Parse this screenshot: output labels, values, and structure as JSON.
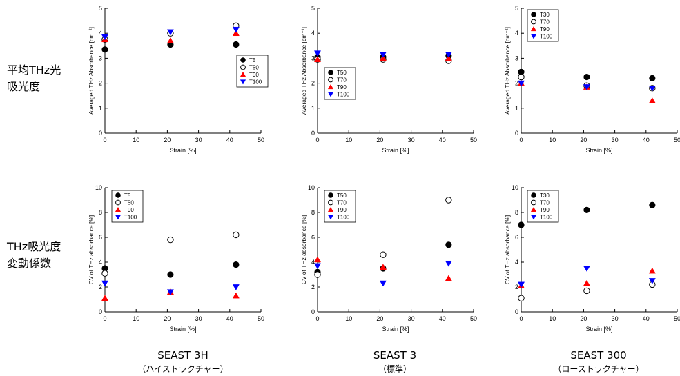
{
  "row_labels": [
    {
      "line1": "平均THz光",
      "line2": "吸光度"
    },
    {
      "line1": "THz吸光度",
      "line2": "変動係数"
    }
  ],
  "column_labels": [
    {
      "title": "SEAST 3H",
      "subtitle": "（ハイストラクチャー）"
    },
    {
      "title": "SEAST 3",
      "subtitle": "（標準）"
    },
    {
      "title": "SEAST 300",
      "subtitle": "（ローストラクチャー）"
    }
  ],
  "chart_data": [
    {
      "type": "scatter",
      "xlabel": "Strain [%]",
      "ylabel": "Averaged THz Absorbance [cm⁻¹]",
      "xlim": [
        0,
        50
      ],
      "ylim": [
        0,
        5
      ],
      "xticks": [
        0,
        10,
        20,
        30,
        40,
        50
      ],
      "yticks": [
        0,
        1,
        2,
        3,
        4,
        5
      ],
      "legend_position": "right-middle",
      "grid": false,
      "series": [
        {
          "name": "T5",
          "marker": "filled-circle",
          "color": "#000000",
          "x": [
            0,
            21,
            42
          ],
          "y": [
            3.35,
            3.55,
            3.55
          ]
        },
        {
          "name": "T50",
          "marker": "open-circle",
          "color": "#000000",
          "x": [
            0,
            21,
            42
          ],
          "y": [
            3.75,
            4.0,
            4.3
          ]
        },
        {
          "name": "T90",
          "marker": "triangle-up",
          "color": "#ff0000",
          "x": [
            0,
            21,
            42
          ],
          "y": [
            3.75,
            3.7,
            4.0
          ]
        },
        {
          "name": "T100",
          "marker": "triangle-down",
          "color": "#0000ff",
          "x": [
            0,
            21,
            42
          ],
          "y": [
            3.85,
            4.05,
            4.15
          ]
        }
      ]
    },
    {
      "type": "scatter",
      "xlabel": "Strain [%]",
      "ylabel": "Averaged THz Absorbance [cm⁻¹]",
      "xlim": [
        0,
        50
      ],
      "ylim": [
        0,
        5
      ],
      "xticks": [
        0,
        10,
        20,
        30,
        40,
        50
      ],
      "yticks": [
        0,
        1,
        2,
        3,
        4,
        5
      ],
      "legend_position": "left-middle",
      "grid": false,
      "series": [
        {
          "name": "T50",
          "marker": "filled-circle",
          "color": "#000000",
          "x": [
            0,
            21,
            42
          ],
          "y": [
            3.05,
            3.05,
            3.1
          ]
        },
        {
          "name": "T70",
          "marker": "open-circle",
          "color": "#000000",
          "x": [
            0,
            21,
            42
          ],
          "y": [
            2.95,
            2.95,
            2.9
          ]
        },
        {
          "name": "T90",
          "marker": "triangle-up",
          "color": "#ff0000",
          "x": [
            0,
            21,
            42
          ],
          "y": [
            2.95,
            3.0,
            3.0
          ]
        },
        {
          "name": "T100",
          "marker": "triangle-down",
          "color": "#0000ff",
          "x": [
            0,
            21,
            42
          ],
          "y": [
            3.2,
            3.15,
            3.15
          ]
        }
      ]
    },
    {
      "type": "scatter",
      "xlabel": "Strain [%]",
      "ylabel": "Averaged THz Absorbance [cm⁻¹]",
      "xlim": [
        0,
        50
      ],
      "ylim": [
        0,
        5
      ],
      "xticks": [
        0,
        10,
        20,
        30,
        40,
        50
      ],
      "yticks": [
        0,
        1,
        2,
        3,
        4,
        5
      ],
      "legend_position": "top-left",
      "grid": false,
      "series": [
        {
          "name": "T30",
          "marker": "filled-circle",
          "color": "#000000",
          "x": [
            0,
            21,
            42
          ],
          "y": [
            2.45,
            2.25,
            2.2
          ]
        },
        {
          "name": "T70",
          "marker": "open-circle",
          "color": "#000000",
          "x": [
            0,
            21,
            42
          ],
          "y": [
            2.25,
            1.9,
            1.8
          ]
        },
        {
          "name": "T90",
          "marker": "triangle-up",
          "color": "#ff0000",
          "x": [
            0,
            21,
            42
          ],
          "y": [
            2.0,
            1.85,
            1.3
          ]
        },
        {
          "name": "T100",
          "marker": "triangle-down",
          "color": "#0000ff",
          "x": [
            0,
            21,
            42
          ],
          "y": [
            2.0,
            1.85,
            1.8
          ]
        }
      ]
    },
    {
      "type": "scatter",
      "xlabel": "Strain [%]",
      "ylabel": "CV of THz absorbance [%]",
      "xlim": [
        0,
        50
      ],
      "ylim": [
        0,
        10
      ],
      "xticks": [
        0,
        10,
        20,
        30,
        40,
        50
      ],
      "yticks": [
        0,
        2,
        4,
        6,
        8,
        10
      ],
      "legend_position": "top-left",
      "grid": false,
      "series": [
        {
          "name": "T5",
          "marker": "filled-circle",
          "color": "#000000",
          "x": [
            0,
            21,
            42
          ],
          "y": [
            3.5,
            3.0,
            3.8
          ]
        },
        {
          "name": "T50",
          "marker": "open-circle",
          "color": "#000000",
          "x": [
            0,
            21,
            42
          ],
          "y": [
            3.1,
            5.8,
            6.2
          ]
        },
        {
          "name": "T90",
          "marker": "triangle-up",
          "color": "#ff0000",
          "x": [
            0,
            21,
            42
          ],
          "y": [
            1.1,
            1.6,
            1.3
          ]
        },
        {
          "name": "T100",
          "marker": "triangle-down",
          "color": "#0000ff",
          "x": [
            0,
            21,
            42
          ],
          "y": [
            2.3,
            1.6,
            2.0
          ]
        }
      ]
    },
    {
      "type": "scatter",
      "xlabel": "Strain [%]",
      "ylabel": "CV of THz absorbance [%]",
      "xlim": [
        0,
        50
      ],
      "ylim": [
        0,
        10
      ],
      "xticks": [
        0,
        10,
        20,
        30,
        40,
        50
      ],
      "yticks": [
        0,
        2,
        4,
        6,
        8,
        10
      ],
      "legend_position": "top-left",
      "grid": false,
      "series": [
        {
          "name": "T50",
          "marker": "filled-circle",
          "color": "#000000",
          "x": [
            0,
            21,
            42
          ],
          "y": [
            3.2,
            3.5,
            5.4
          ]
        },
        {
          "name": "T70",
          "marker": "open-circle",
          "color": "#000000",
          "x": [
            0,
            21,
            42
          ],
          "y": [
            3.0,
            4.6,
            9.0
          ]
        },
        {
          "name": "T90",
          "marker": "triangle-up",
          "color": "#ff0000",
          "x": [
            0,
            21,
            42
          ],
          "y": [
            4.2,
            3.6,
            2.7
          ]
        },
        {
          "name": "T100",
          "marker": "triangle-down",
          "color": "#0000ff",
          "x": [
            0,
            21,
            42
          ],
          "y": [
            3.7,
            2.3,
            3.9
          ]
        }
      ]
    },
    {
      "type": "scatter",
      "xlabel": "Strain [%]",
      "ylabel": "CV of THz absorbance [%]",
      "xlim": [
        0,
        50
      ],
      "ylim": [
        0,
        10
      ],
      "xticks": [
        0,
        10,
        20,
        30,
        40,
        50
      ],
      "yticks": [
        0,
        2,
        4,
        6,
        8,
        10
      ],
      "legend_position": "top-left",
      "grid": false,
      "series": [
        {
          "name": "T30",
          "marker": "filled-circle",
          "color": "#000000",
          "x": [
            0,
            21,
            42
          ],
          "y": [
            7.0,
            8.2,
            8.6
          ]
        },
        {
          "name": "T70",
          "marker": "open-circle",
          "color": "#000000",
          "x": [
            0,
            21,
            42
          ],
          "y": [
            1.1,
            1.7,
            2.2
          ]
        },
        {
          "name": "T90",
          "marker": "triangle-up",
          "color": "#ff0000",
          "x": [
            0,
            21,
            42
          ],
          "y": [
            2.1,
            2.3,
            3.3
          ]
        },
        {
          "name": "T100",
          "marker": "triangle-down",
          "color": "#0000ff",
          "x": [
            0,
            21,
            42
          ],
          "y": [
            2.2,
            3.5,
            2.5
          ]
        }
      ]
    }
  ]
}
